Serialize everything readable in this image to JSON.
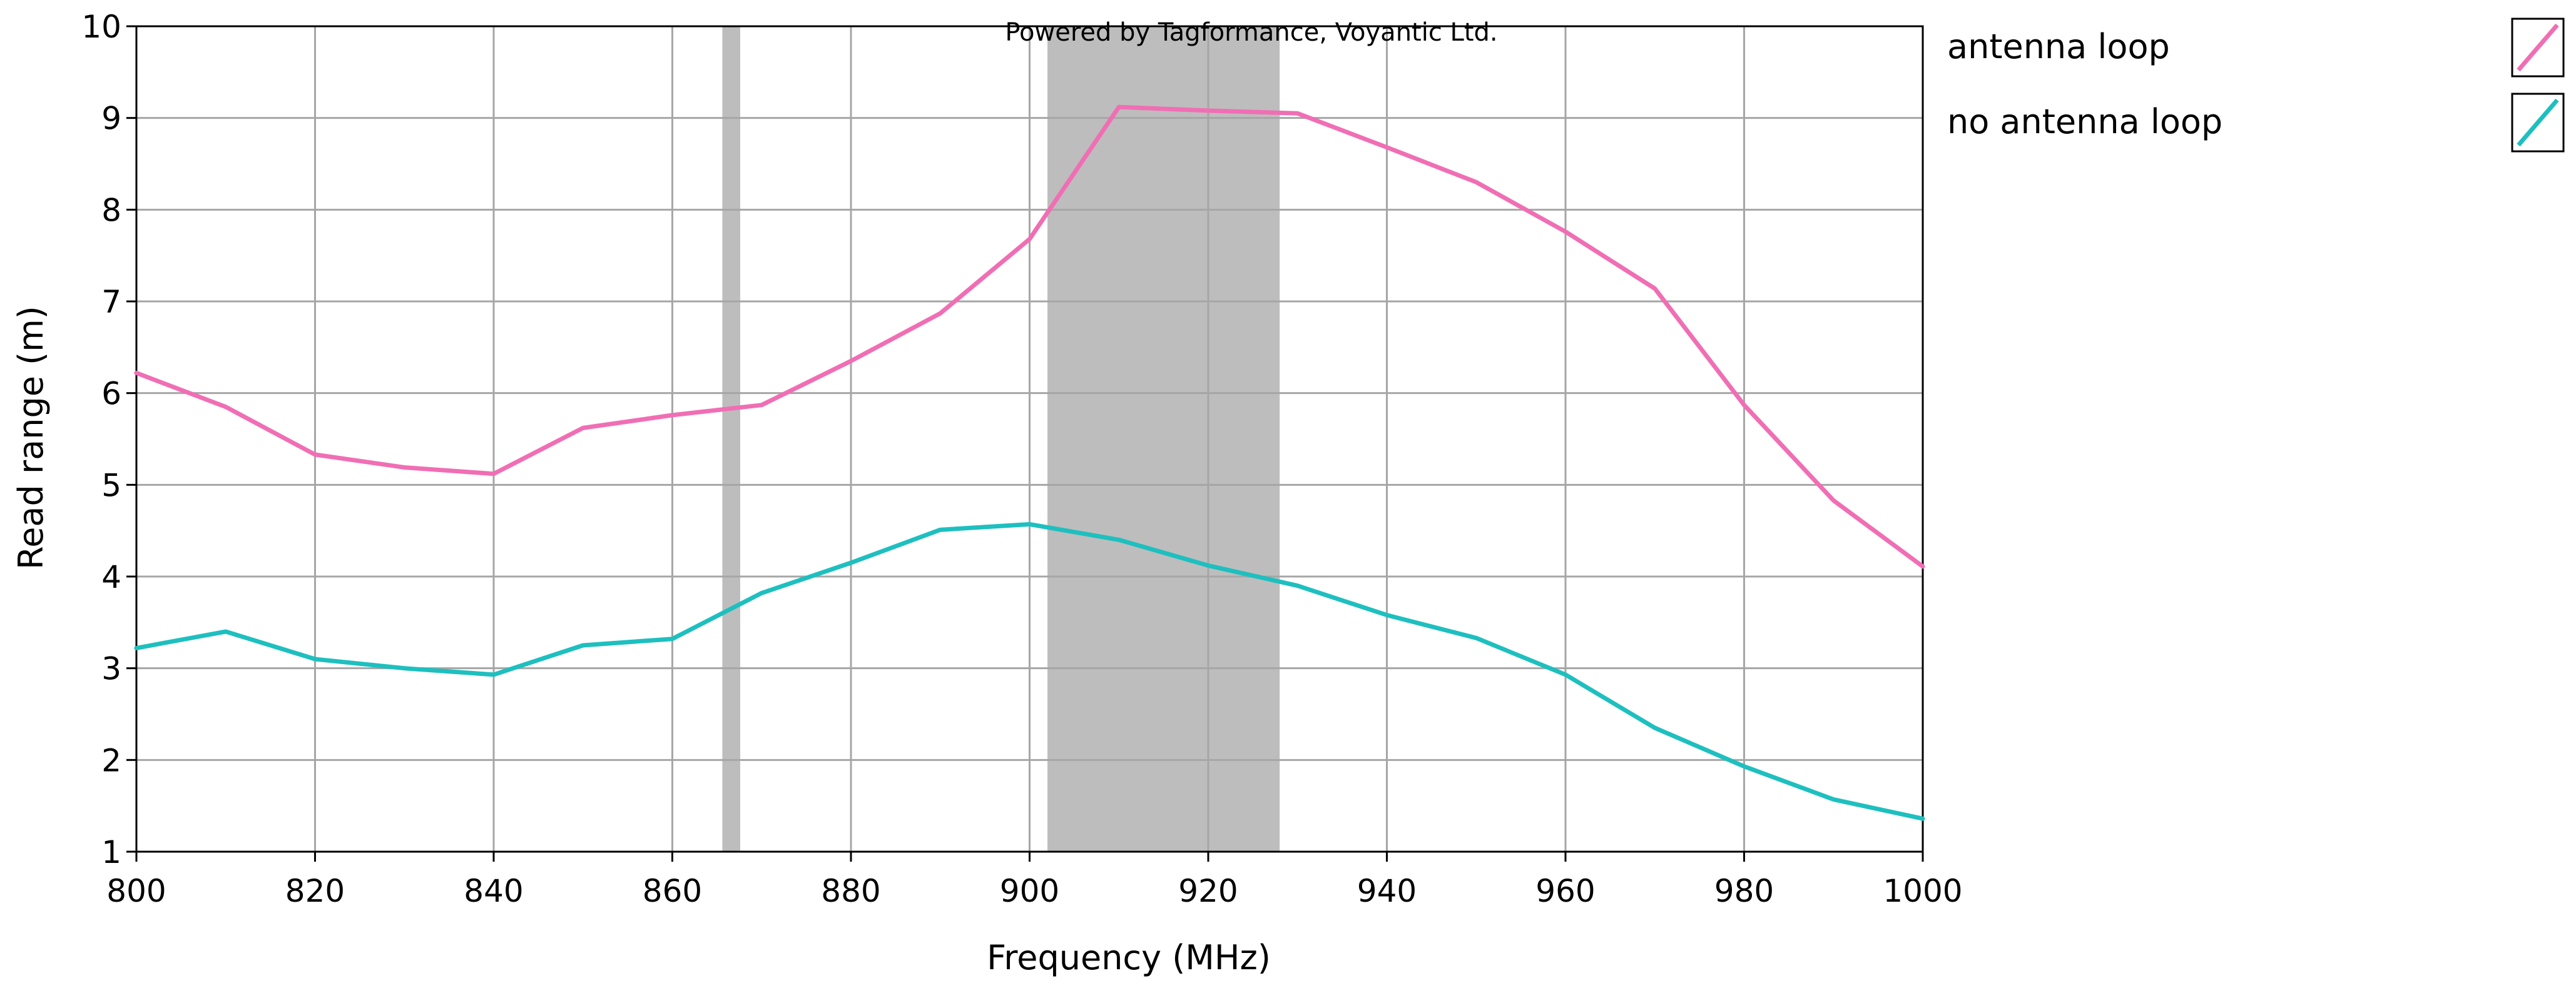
{
  "chart_data": {
    "type": "line",
    "title": "",
    "watermark": "Powered by Tagformance, Voyantic Ltd.",
    "xlabel": "Frequency (MHz)",
    "ylabel": "Read range (m)",
    "xlim": [
      800,
      1000
    ],
    "ylim": [
      1,
      10
    ],
    "x_ticks": [
      800,
      820,
      840,
      860,
      880,
      900,
      920,
      940,
      960,
      980,
      1000
    ],
    "y_ticks": [
      1,
      2,
      3,
      4,
      5,
      6,
      7,
      8,
      9,
      10
    ],
    "grid": true,
    "legend_position": "right",
    "shaded_bands": [
      {
        "x_start": 865.6,
        "x_end": 867.6,
        "color": "#bdbdbd"
      },
      {
        "x_start": 902,
        "x_end": 928,
        "color": "#bdbdbd"
      }
    ],
    "x": [
      800,
      810,
      820,
      830,
      840,
      850,
      860,
      870,
      880,
      890,
      900,
      910,
      920,
      930,
      940,
      950,
      960,
      970,
      980,
      990,
      1000
    ],
    "series": [
      {
        "name": "antenna loop",
        "color": "#f06eb4",
        "values": [
          6.22,
          5.85,
          5.33,
          5.19,
          5.12,
          5.62,
          5.76,
          5.87,
          6.35,
          6.87,
          7.68,
          9.12,
          9.08,
          9.05,
          8.68,
          8.3,
          7.76,
          7.14,
          5.87,
          4.83,
          4.11
        ]
      },
      {
        "name": "no antenna loop",
        "color": "#1ebfbf",
        "values": [
          3.22,
          3.4,
          3.1,
          3.0,
          2.93,
          3.25,
          3.32,
          3.82,
          4.15,
          4.51,
          4.57,
          4.4,
          4.12,
          3.9,
          3.58,
          3.33,
          2.93,
          2.35,
          1.93,
          1.57,
          1.36
        ]
      }
    ]
  }
}
